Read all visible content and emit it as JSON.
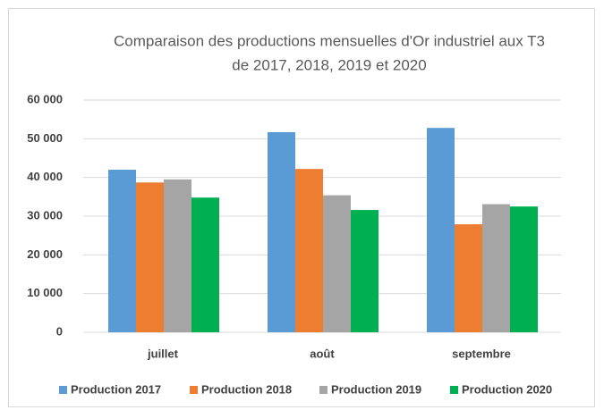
{
  "chart_data": {
    "type": "bar",
    "title": [
      "Comparaison des productions mensuelles d'Or industriel aux T3",
      "de 2017, 2018, 2019 et 2020"
    ],
    "categories": [
      "juillet",
      "août",
      "septembre"
    ],
    "series": [
      {
        "name": "Production 2017",
        "color": "#5b9bd5",
        "values": [
          42000,
          51700,
          52800
        ]
      },
      {
        "name": "Production 2018",
        "color": "#ed7d31",
        "values": [
          38700,
          42200,
          27900
        ]
      },
      {
        "name": "Production 2019",
        "color": "#a5a5a5",
        "values": [
          39500,
          35400,
          33100
        ]
      },
      {
        "name": "Production 2020",
        "color": "#00b050",
        "values": [
          34800,
          31600,
          32500
        ]
      }
    ],
    "ylim": [
      0,
      60000
    ],
    "yticks": [
      0,
      {
        "value": 10000,
        "label": "10 000"
      },
      {
        "value": 20000,
        "label": "20 000"
      },
      {
        "value": 30000,
        "label": "30 000"
      },
      {
        "value": 40000,
        "label": "40 000"
      },
      {
        "value": 50000,
        "label": "50 000"
      },
      {
        "value": 60000,
        "label": "60 000"
      }
    ],
    "grid": true,
    "legend": "bottom"
  }
}
